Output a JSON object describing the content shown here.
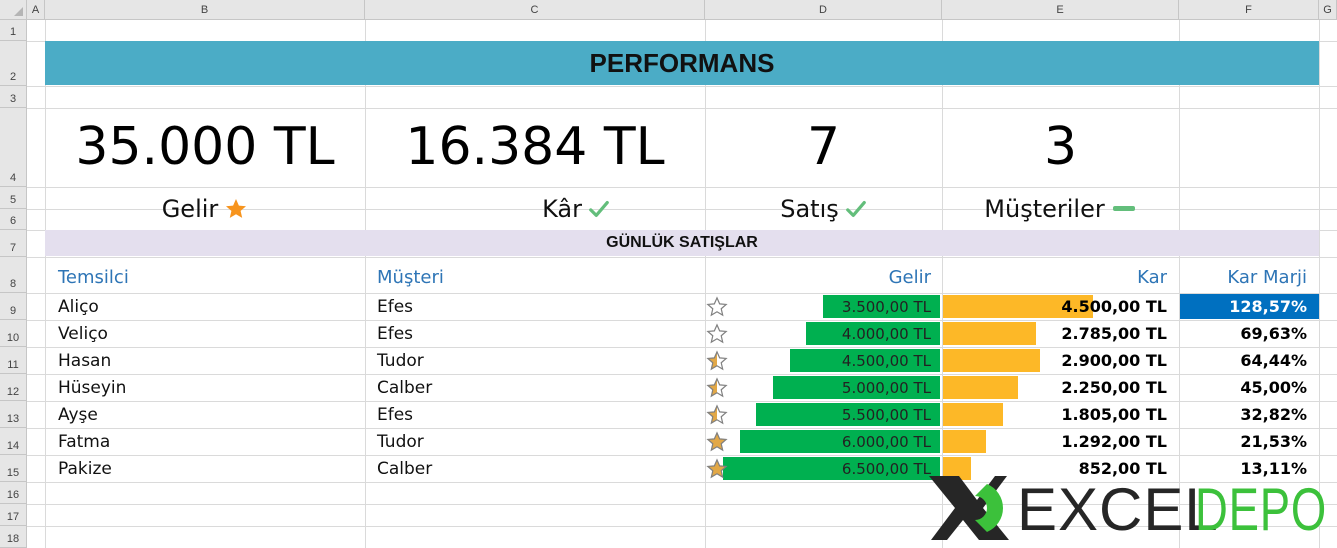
{
  "grid": {
    "columns": [
      "A",
      "B",
      "C",
      "D",
      "E",
      "F",
      "G"
    ],
    "rows": [
      "1",
      "2",
      "3",
      "4",
      "5",
      "6",
      "7",
      "8",
      "9",
      "10",
      "11",
      "12",
      "13",
      "14",
      "15",
      "16",
      "17",
      "18"
    ]
  },
  "title": "PERFORMANS",
  "kpis": [
    {
      "value": "35.000 TL",
      "label": "Gelir",
      "icon": "star-icon",
      "icon_color": "#f7941d"
    },
    {
      "value": "16.384 TL",
      "label": "Kâr",
      "icon": "check-icon",
      "icon_color": "#63be7b"
    },
    {
      "value": "7",
      "label": "Satış",
      "icon": "check-icon",
      "icon_color": "#63be7b"
    },
    {
      "value": "3",
      "label": "Müşteriler",
      "icon": "dash-icon",
      "icon_color": "#63be7b"
    }
  ],
  "section_title": "GÜNLÜK SATIŞLAR",
  "table": {
    "headers": [
      "Temsilci",
      "Müşteri",
      "Gelir",
      "Kar",
      "Kar Marji"
    ],
    "rows": [
      {
        "temsilci": "Aliço",
        "musteri": "Efes",
        "gelir": "3.500,00 TL",
        "kar": "4.500,00 TL",
        "marj": "128,57%",
        "gelir_value": 3500,
        "kar_value": 4500,
        "star": "empty"
      },
      {
        "temsilci": "Veliço",
        "musteri": "Efes",
        "gelir": "4.000,00 TL",
        "kar": "2.785,00 TL",
        "marj": "69,63%",
        "gelir_value": 4000,
        "kar_value": 2785,
        "star": "empty"
      },
      {
        "temsilci": "Hasan",
        "musteri": "Tudor",
        "gelir": "4.500,00 TL",
        "kar": "2.900,00 TL",
        "marj": "64,44%",
        "gelir_value": 4500,
        "kar_value": 2900,
        "star": "half"
      },
      {
        "temsilci": "Hüseyin",
        "musteri": "Calber",
        "gelir": "5.000,00 TL",
        "kar": "2.250,00 TL",
        "marj": "45,00%",
        "gelir_value": 5000,
        "kar_value": 2250,
        "star": "half"
      },
      {
        "temsilci": "Ayşe",
        "musteri": "Efes",
        "gelir": "5.500,00 TL",
        "kar": "1.805,00 TL",
        "marj": "32,82%",
        "gelir_value": 5500,
        "kar_value": 1805,
        "star": "half"
      },
      {
        "temsilci": "Fatma",
        "musteri": "Tudor",
        "gelir": "6.000,00 TL",
        "kar": "1.292,00 TL",
        "marj": "21,53%",
        "gelir_value": 6000,
        "kar_value": 1292,
        "star": "full"
      },
      {
        "temsilci": "Pakize",
        "musteri": "Calber",
        "gelir": "6.500,00 TL",
        "kar": "852,00 TL",
        "marj": "13,11%",
        "gelir_value": 6500,
        "kar_value": 852,
        "star": "full"
      }
    ]
  },
  "colors": {
    "title_band": "#4bacc6",
    "section_band": "#e4dfee",
    "header_text": "#2e75b6",
    "gelir_bar": "#00b050",
    "kar_bar": "#fdb827",
    "marj_highlight": "#0070c0"
  },
  "logo": {
    "text_dark": "EXCEL",
    "text_green": "DEPO"
  }
}
